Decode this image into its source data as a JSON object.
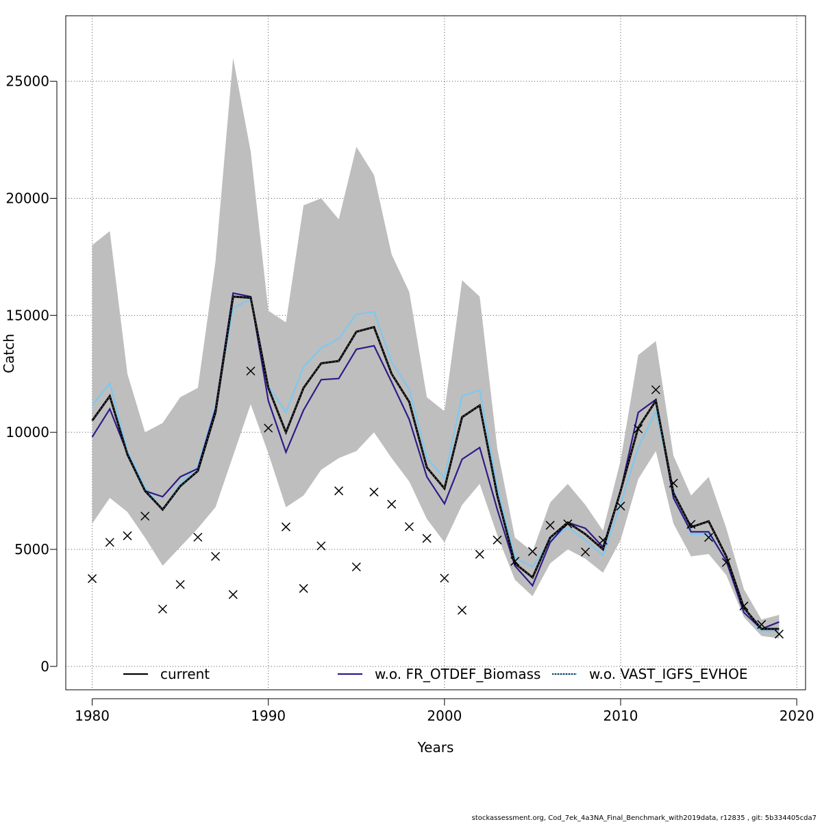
{
  "chart_data": {
    "type": "line",
    "xlabel": "Years",
    "ylabel": "Catch",
    "xlim": [
      1978.5,
      2020.5
    ],
    "ylim": [
      -1000,
      27800
    ],
    "xticks": [
      1980,
      1990,
      2000,
      2010,
      2020
    ],
    "yticks": [
      0,
      5000,
      10000,
      15000,
      20000,
      25000
    ],
    "grid": true,
    "legend_position": "bottom",
    "x": [
      1980,
      1981,
      1982,
      1983,
      1984,
      1985,
      1986,
      1987,
      1988,
      1989,
      1990,
      1991,
      1992,
      1993,
      1994,
      1995,
      1996,
      1997,
      1998,
      1999,
      2000,
      2001,
      2002,
      2003,
      2004,
      2005,
      2006,
      2007,
      2008,
      2009,
      2010,
      2011,
      2012,
      2013,
      2014,
      2015,
      2016,
      2017,
      2018,
      2019
    ],
    "band": {
      "lower": [
        6100,
        7200,
        6600,
        5500,
        4300,
        5100,
        5900,
        6800,
        9000,
        11200,
        9100,
        6800,
        7300,
        8400,
        8900,
        9200,
        10000,
        8900,
        7900,
        6300,
        5300,
        6900,
        7800,
        5600,
        3700,
        3000,
        4400,
        5000,
        4600,
        4000,
        5400,
        8000,
        9200,
        6100,
        4700,
        4800,
        3900,
        2100,
        1300,
        1200
      ],
      "upper": [
        18000,
        18600,
        12500,
        10000,
        10400,
        11500,
        11900,
        17300,
        26000,
        22000,
        15200,
        14700,
        19700,
        20000,
        19100,
        22200,
        21000,
        17600,
        16000,
        11500,
        10900,
        16500,
        15800,
        9300,
        5500,
        4900,
        7000,
        7800,
        6900,
        5800,
        8800,
        13300,
        13900,
        9000,
        7300,
        8100,
        5900,
        3300,
        2000,
        2200
      ]
    },
    "series": [
      {
        "name": "current",
        "color": "#000000",
        "values": [
          10500,
          11550,
          9050,
          7500,
          6700,
          7700,
          8350,
          10850,
          15800,
          15750,
          11900,
          10000,
          11900,
          12950,
          13050,
          14300,
          14500,
          12500,
          11300,
          8500,
          7600,
          10650,
          11150,
          7300,
          4400,
          3800,
          5500,
          6150,
          5650,
          5000,
          7500,
          10200,
          11350,
          7400,
          5950,
          6200,
          4700,
          2500,
          1600,
          1600
        ]
      },
      {
        "name": "w.o. FR_OTDEF_Biomass",
        "color": "#2e1a87",
        "values": [
          9800,
          11000,
          9100,
          7500,
          7250,
          8100,
          8450,
          11000,
          15950,
          15800,
          11350,
          9150,
          10950,
          12250,
          12300,
          13550,
          13700,
          12150,
          10550,
          8100,
          6950,
          8850,
          9350,
          6700,
          4300,
          3450,
          5300,
          6150,
          5900,
          5100,
          7500,
          10850,
          11400,
          7200,
          5750,
          5750,
          4500,
          2300,
          1600,
          1900
        ]
      },
      {
        "name": "w.o. VAST_IGFS_EVHOE",
        "color": "#7dc8ef",
        "values": [
          11150,
          12100,
          9200,
          7650,
          6700,
          7800,
          8550,
          11100,
          15300,
          15700,
          12000,
          10850,
          12800,
          13600,
          14000,
          15050,
          15150,
          13000,
          11850,
          8900,
          8050,
          11550,
          11800,
          7650,
          4650,
          4250,
          5350,
          5950,
          5400,
          4750,
          6950,
          9350,
          10900,
          7550,
          5650,
          5650,
          4550,
          2350,
          1500,
          1500
        ]
      }
    ],
    "observed": {
      "marker": "x",
      "values": [
        3750,
        5300,
        5580,
        6420,
        2450,
        3500,
        5520,
        4700,
        3070,
        12620,
        10180,
        5960,
        3330,
        5150,
        7500,
        4250,
        7450,
        6930,
        5970,
        5470,
        3770,
        2400,
        4790,
        5400,
        4490,
        4910,
        6030,
        6090,
        4890,
        5390,
        6850,
        10150,
        11820,
        7830,
        6070,
        5510,
        4440,
        2580,
        1790,
        1380
      ]
    }
  },
  "footer": {
    "text": "stockassessment.org, Cod_7ek_4a3NA_Final_Benchmark_with2019data, r12835 , git: 5b334405cda7"
  }
}
